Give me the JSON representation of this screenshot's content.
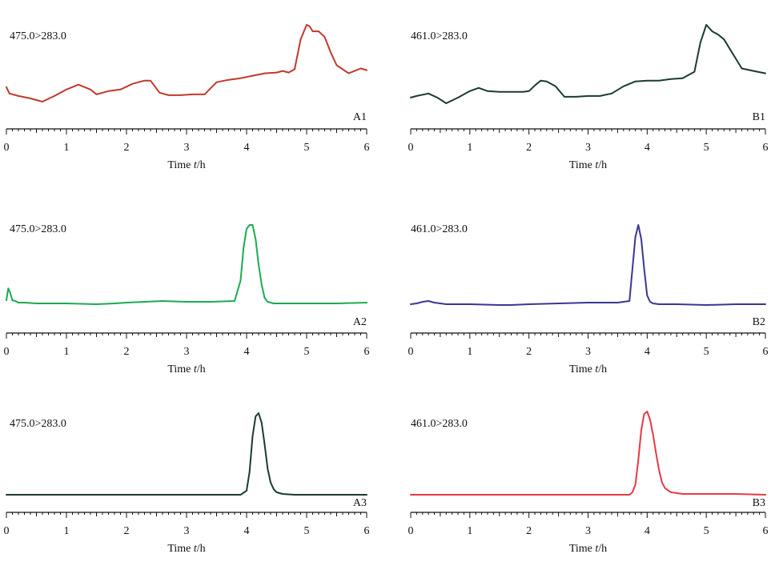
{
  "chart_data": [
    {
      "type": "line",
      "panel": "A1",
      "mrm": "475.0>283.0",
      "color": "#c0392b",
      "xlabel": "Time t/h",
      "xlim": [
        0,
        6
      ],
      "xticks": [
        "0",
        "1",
        "2",
        "3",
        "4",
        "5",
        "6"
      ],
      "series": [
        {
          "name": "A1",
          "x": [
            0,
            0.05,
            0.2,
            0.4,
            0.6,
            0.8,
            1.0,
            1.2,
            1.4,
            1.5,
            1.7,
            1.9,
            2.1,
            2.3,
            2.4,
            2.55,
            2.7,
            2.9,
            3.1,
            3.3,
            3.5,
            3.7,
            3.9,
            4.1,
            4.3,
            4.5,
            4.6,
            4.7,
            4.8,
            4.9,
            5.0,
            5.05,
            5.1,
            5.2,
            5.3,
            5.4,
            5.5,
            5.6,
            5.7,
            5.8,
            5.9,
            6.0
          ],
          "y": [
            0.23,
            0.15,
            0.12,
            0.09,
            0.05,
            0.12,
            0.2,
            0.26,
            0.2,
            0.14,
            0.18,
            0.2,
            0.27,
            0.31,
            0.31,
            0.16,
            0.13,
            0.13,
            0.14,
            0.14,
            0.29,
            0.32,
            0.34,
            0.37,
            0.4,
            0.41,
            0.43,
            0.41,
            0.45,
            0.82,
            1.0,
            0.98,
            0.92,
            0.92,
            0.85,
            0.66,
            0.5,
            0.45,
            0.4,
            0.43,
            0.46,
            0.44
          ]
        }
      ]
    },
    {
      "type": "line",
      "panel": "B1",
      "mrm": "461.0>283.0",
      "color": "#1b3b2c",
      "xlabel": "Time t/h",
      "xlim": [
        0,
        6
      ],
      "xticks": [
        "0",
        "1",
        "2",
        "3",
        "4",
        "5",
        "6"
      ],
      "series": [
        {
          "name": "B1",
          "x": [
            0,
            0.1,
            0.3,
            0.45,
            0.6,
            0.8,
            1.0,
            1.15,
            1.3,
            1.5,
            1.7,
            1.9,
            2.0,
            2.1,
            2.2,
            2.3,
            2.45,
            2.6,
            2.8,
            3.0,
            3.2,
            3.4,
            3.6,
            3.8,
            4.0,
            4.2,
            4.4,
            4.6,
            4.8,
            4.9,
            5.0,
            5.1,
            5.2,
            5.3,
            5.4,
            5.5,
            5.6,
            5.8,
            6.0
          ],
          "y": [
            0.1,
            0.12,
            0.15,
            0.1,
            0.03,
            0.1,
            0.18,
            0.22,
            0.18,
            0.17,
            0.17,
            0.17,
            0.18,
            0.25,
            0.31,
            0.3,
            0.24,
            0.11,
            0.11,
            0.12,
            0.12,
            0.15,
            0.24,
            0.3,
            0.31,
            0.31,
            0.33,
            0.34,
            0.42,
            0.78,
            1.0,
            0.92,
            0.88,
            0.82,
            0.7,
            0.58,
            0.46,
            0.43,
            0.4
          ]
        }
      ]
    },
    {
      "type": "line",
      "panel": "A2",
      "mrm": "475.0>283.0",
      "color": "#1aab52",
      "xlabel": "Time t/h",
      "xlim": [
        0,
        6
      ],
      "xticks": [
        "0",
        "1",
        "2",
        "3",
        "4",
        "5",
        "6"
      ],
      "series": [
        {
          "name": "A2",
          "x": [
            0,
            0.03,
            0.06,
            0.1,
            0.15,
            0.2,
            0.3,
            0.5,
            1.0,
            1.5,
            1.8,
            2.0,
            2.3,
            2.6,
            3.0,
            3.4,
            3.8,
            3.9,
            3.95,
            4.0,
            4.05,
            4.1,
            4.15,
            4.2,
            4.25,
            4.3,
            4.35,
            4.45,
            4.6,
            5.0,
            5.5,
            6.0
          ],
          "y": [
            0.05,
            0.2,
            0.15,
            0.05,
            0.04,
            0.02,
            0.02,
            0.01,
            0.01,
            0.0,
            0.01,
            0.02,
            0.03,
            0.04,
            0.03,
            0.03,
            0.04,
            0.3,
            0.72,
            0.95,
            1.0,
            1.0,
            0.82,
            0.5,
            0.25,
            0.08,
            0.03,
            0.01,
            0.01,
            0.01,
            0.01,
            0.02
          ]
        }
      ]
    },
    {
      "type": "line",
      "panel": "B2",
      "mrm": "461.0>283.0",
      "color": "#3a3696",
      "xlabel": "Time t/h",
      "xlim": [
        0,
        6
      ],
      "xticks": [
        "0",
        "1",
        "2",
        "3",
        "4",
        "5",
        "6"
      ],
      "series": [
        {
          "name": "B2",
          "x": [
            0,
            0.1,
            0.2,
            0.3,
            0.4,
            0.6,
            1.0,
            1.5,
            1.7,
            2.0,
            2.5,
            3.0,
            3.5,
            3.7,
            3.75,
            3.8,
            3.85,
            3.9,
            3.95,
            4.0,
            4.05,
            4.1,
            4.2,
            4.5,
            5.0,
            5.5,
            6.0
          ],
          "y": [
            0.01,
            0.02,
            0.04,
            0.05,
            0.03,
            0.01,
            0.01,
            0.0,
            0.0,
            0.01,
            0.02,
            0.03,
            0.03,
            0.05,
            0.45,
            0.85,
            1.0,
            0.82,
            0.45,
            0.12,
            0.04,
            0.02,
            0.01,
            0.01,
            0.0,
            0.01,
            0.01
          ]
        }
      ]
    },
    {
      "type": "line",
      "panel": "A3",
      "mrm": "475.0>283.0",
      "color": "#1b3b2c",
      "xlabel": "Time t/h",
      "xlim": [
        0,
        6
      ],
      "xticks": [
        "0",
        "1",
        "2",
        "3",
        "4",
        "5",
        "6"
      ],
      "series": [
        {
          "name": "A3",
          "x": [
            0,
            1.0,
            2.0,
            3.0,
            3.9,
            4.0,
            4.05,
            4.1,
            4.15,
            4.2,
            4.25,
            4.3,
            4.35,
            4.4,
            4.45,
            4.5,
            4.6,
            4.8,
            5.0,
            6.0
          ],
          "y": [
            0,
            0,
            0,
            0,
            0,
            0.05,
            0.28,
            0.72,
            0.96,
            1.0,
            0.88,
            0.62,
            0.32,
            0.15,
            0.07,
            0.03,
            0.01,
            0,
            0,
            0
          ]
        }
      ]
    },
    {
      "type": "line",
      "panel": "B3",
      "mrm": "461.0>283.0",
      "color": "#e53946",
      "xlabel": "Time t/h",
      "xlim": [
        0,
        6
      ],
      "xticks": [
        "0",
        "1",
        "2",
        "3",
        "4",
        "5",
        "6"
      ],
      "series": [
        {
          "name": "B3",
          "x": [
            0,
            1.0,
            2.0,
            3.0,
            3.7,
            3.75,
            3.8,
            3.85,
            3.9,
            3.95,
            4.0,
            4.05,
            4.1,
            4.15,
            4.2,
            4.25,
            4.3,
            4.4,
            4.6,
            5.0,
            5.5,
            6.0
          ],
          "y": [
            0,
            0,
            0,
            0,
            0,
            0.03,
            0.12,
            0.42,
            0.78,
            0.97,
            1.0,
            0.9,
            0.72,
            0.5,
            0.3,
            0.15,
            0.08,
            0.03,
            0.01,
            0.01,
            0.01,
            0
          ]
        }
      ]
    }
  ]
}
